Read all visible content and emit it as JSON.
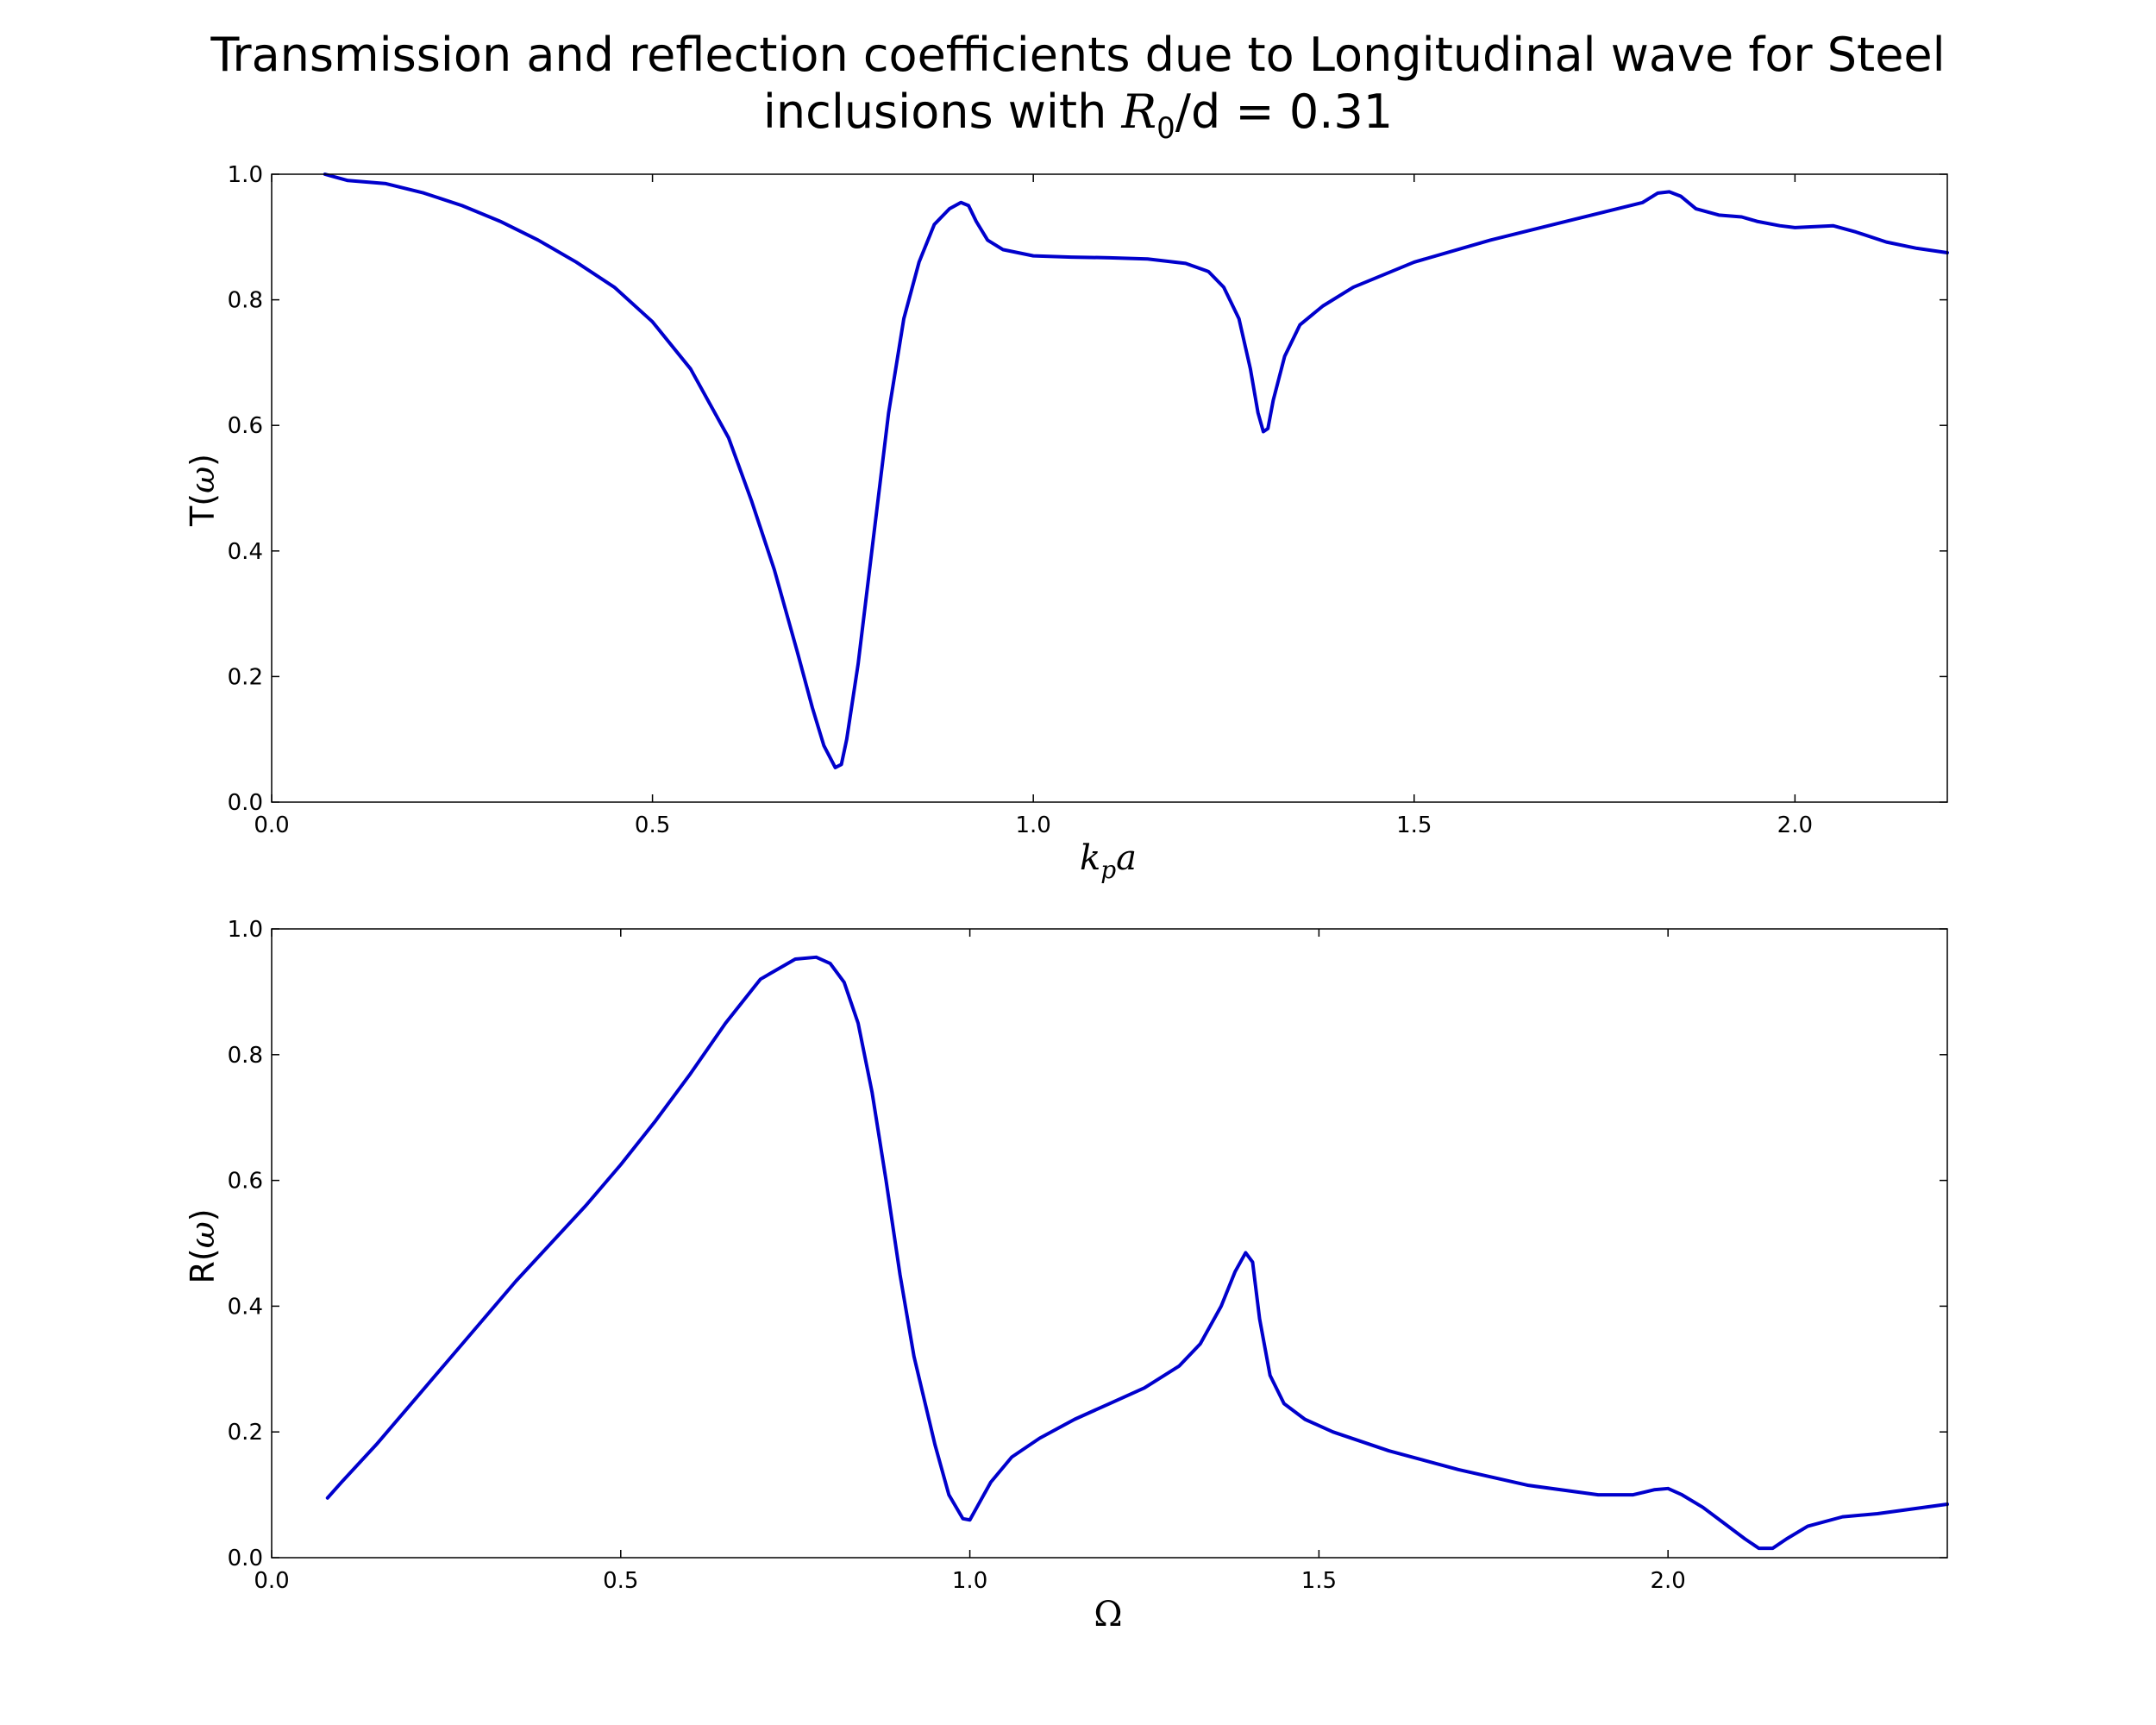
{
  "figure": {
    "title_line1": "Transmission and reflection coefficients due to Longitudinal wave for Steel",
    "title_line2_pre": "inclusions with ",
    "title_math": "R",
    "title_math_sub": "0",
    "title_line2_post": "/d = 0.31",
    "line_color": "#0000cc"
  },
  "chart_data": [
    {
      "type": "line",
      "ylabel_pre": "T(",
      "ylabel_math": "ω",
      "ylabel_post": ")",
      "xlabel_main": "k",
      "xlabel_sub": "p",
      "xlabel_tail": "a",
      "xlim": [
        0.0,
        2.2
      ],
      "ylim": [
        0.0,
        1.0
      ],
      "xticks": [
        "0.0",
        "0.5",
        "1.0",
        "1.5",
        "2.0"
      ],
      "yticks": [
        "0.0",
        "0.2",
        "0.4",
        "0.6",
        "0.8",
        "1.0"
      ],
      "series": [
        {
          "x": [
            0.07,
            0.1,
            0.15,
            0.2,
            0.25,
            0.3,
            0.35,
            0.4,
            0.45,
            0.5,
            0.55,
            0.6,
            0.63,
            0.66,
            0.69,
            0.71,
            0.725,
            0.74,
            0.748,
            0.755,
            0.77,
            0.79,
            0.81,
            0.83,
            0.85,
            0.87,
            0.89,
            0.905,
            0.915,
            0.925,
            0.94,
            0.96,
            1.0,
            1.05,
            1.1,
            1.15,
            1.2,
            1.23,
            1.25,
            1.27,
            1.285,
            1.295,
            1.302,
            1.308,
            1.315,
            1.33,
            1.35,
            1.38,
            1.42,
            1.5,
            1.6,
            1.7,
            1.8,
            1.82,
            1.835,
            1.85,
            1.87,
            1.9,
            1.93,
            1.95,
            1.98,
            2.0,
            2.05,
            2.08,
            2.12,
            2.16,
            2.2
          ],
          "y": [
            1.0,
            0.99,
            0.985,
            0.97,
            0.95,
            0.925,
            0.895,
            0.86,
            0.82,
            0.765,
            0.69,
            0.58,
            0.48,
            0.37,
            0.24,
            0.15,
            0.09,
            0.055,
            0.06,
            0.1,
            0.22,
            0.42,
            0.62,
            0.77,
            0.86,
            0.92,
            0.945,
            0.955,
            0.95,
            0.925,
            0.895,
            0.88,
            0.87,
            0.868,
            0.867,
            0.865,
            0.858,
            0.845,
            0.82,
            0.77,
            0.69,
            0.62,
            0.59,
            0.595,
            0.64,
            0.71,
            0.76,
            0.79,
            0.82,
            0.86,
            0.895,
            0.925,
            0.955,
            0.97,
            0.972,
            0.965,
            0.945,
            0.935,
            0.932,
            0.925,
            0.918,
            0.915,
            0.918,
            0.908,
            0.892,
            0.882,
            0.875
          ]
        }
      ]
    },
    {
      "type": "line",
      "ylabel_pre": "R(",
      "ylabel_math": "ω",
      "ylabel_post": ")",
      "xlabel": "Ω",
      "xlim": [
        0.0,
        2.4
      ],
      "ylim": [
        0.0,
        1.0
      ],
      "xticks": [
        "0.0",
        "0.5",
        "1.0",
        "1.5",
        "2.0"
      ],
      "yticks": [
        "0.0",
        "0.2",
        "0.4",
        "0.6",
        "0.8",
        "1.0"
      ],
      "series": [
        {
          "x": [
            0.08,
            0.1,
            0.15,
            0.2,
            0.25,
            0.3,
            0.35,
            0.4,
            0.45,
            0.5,
            0.55,
            0.6,
            0.65,
            0.7,
            0.75,
            0.78,
            0.8,
            0.82,
            0.84,
            0.86,
            0.88,
            0.9,
            0.92,
            0.95,
            0.97,
            0.99,
            1.0,
            1.01,
            1.03,
            1.06,
            1.1,
            1.15,
            1.2,
            1.25,
            1.3,
            1.33,
            1.36,
            1.38,
            1.395,
            1.405,
            1.415,
            1.43,
            1.45,
            1.48,
            1.52,
            1.6,
            1.7,
            1.8,
            1.9,
            1.95,
            1.98,
            2.0,
            2.02,
            2.05,
            2.08,
            2.11,
            2.13,
            2.15,
            2.17,
            2.2,
            2.25,
            2.3,
            2.4
          ],
          "y": [
            0.095,
            0.12,
            0.18,
            0.245,
            0.31,
            0.375,
            0.44,
            0.5,
            0.56,
            0.625,
            0.695,
            0.77,
            0.85,
            0.92,
            0.952,
            0.955,
            0.945,
            0.915,
            0.85,
            0.74,
            0.6,
            0.45,
            0.32,
            0.18,
            0.1,
            0.062,
            0.06,
            0.08,
            0.12,
            0.16,
            0.19,
            0.22,
            0.245,
            0.27,
            0.305,
            0.34,
            0.4,
            0.455,
            0.485,
            0.47,
            0.38,
            0.29,
            0.245,
            0.22,
            0.2,
            0.17,
            0.14,
            0.115,
            0.1,
            0.1,
            0.108,
            0.11,
            0.1,
            0.08,
            0.055,
            0.03,
            0.015,
            0.015,
            0.03,
            0.05,
            0.065,
            0.07,
            0.085
          ]
        }
      ]
    }
  ]
}
